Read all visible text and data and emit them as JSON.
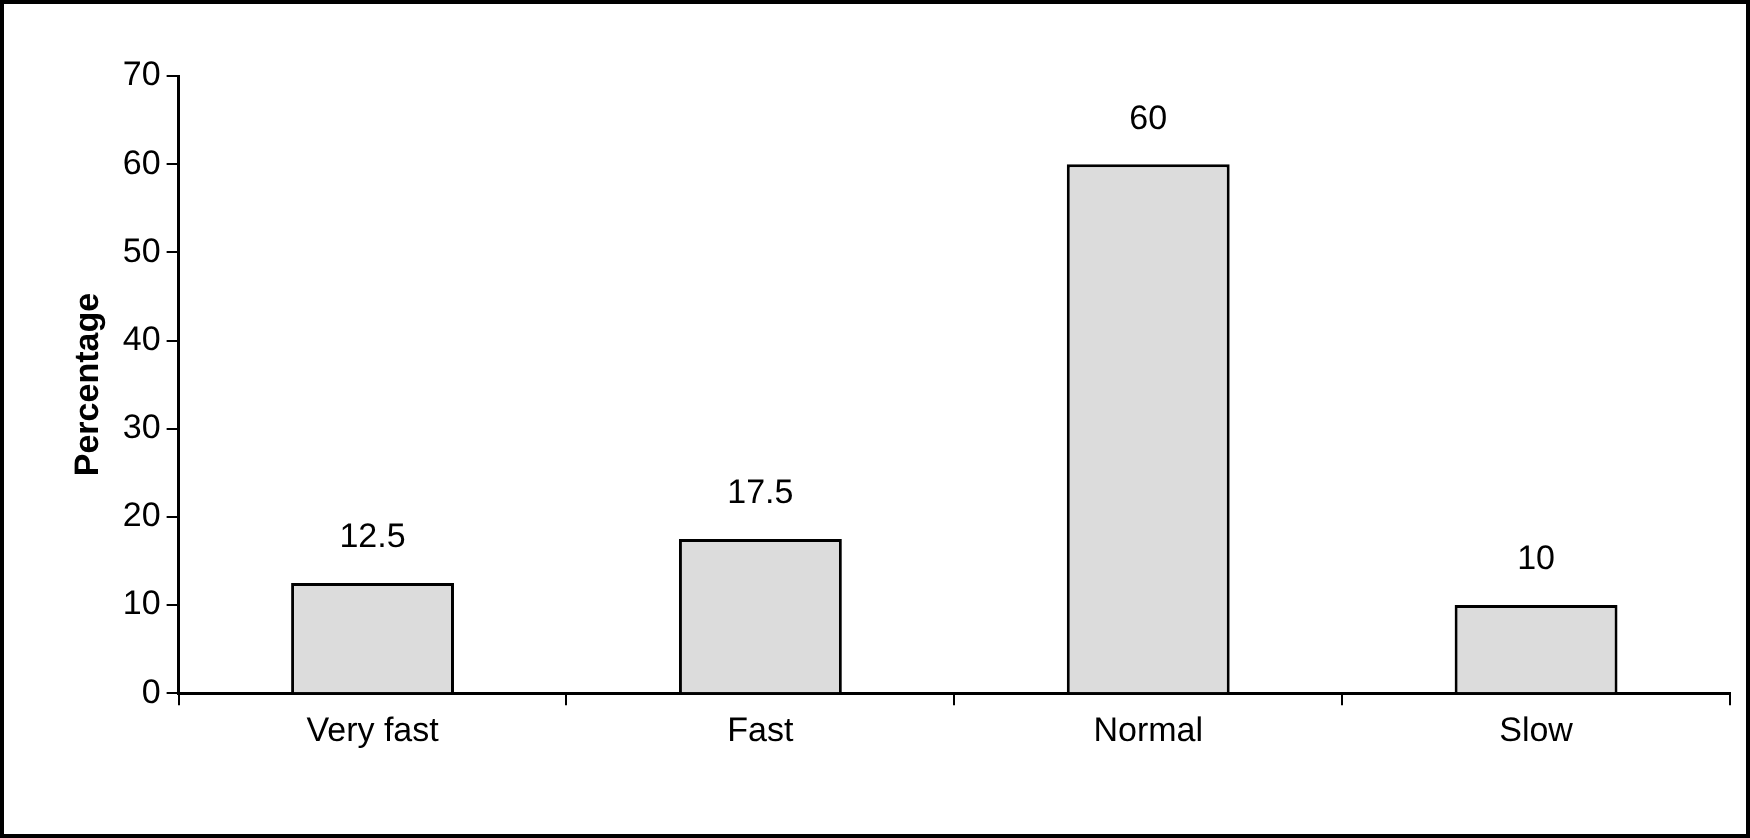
{
  "chart_data": {
    "type": "bar",
    "ylabel": "Percentage",
    "categories": [
      "Very fast",
      "Fast",
      "Normal",
      "Slow"
    ],
    "values": [
      12.5,
      17.5,
      60,
      10
    ],
    "color": "#dcdcdc",
    "ylim": [
      0,
      70
    ],
    "yticks": [
      0,
      10,
      20,
      30,
      40,
      50,
      60,
      70
    ],
    "grid": false,
    "legend": false,
    "data_labels": true
  }
}
